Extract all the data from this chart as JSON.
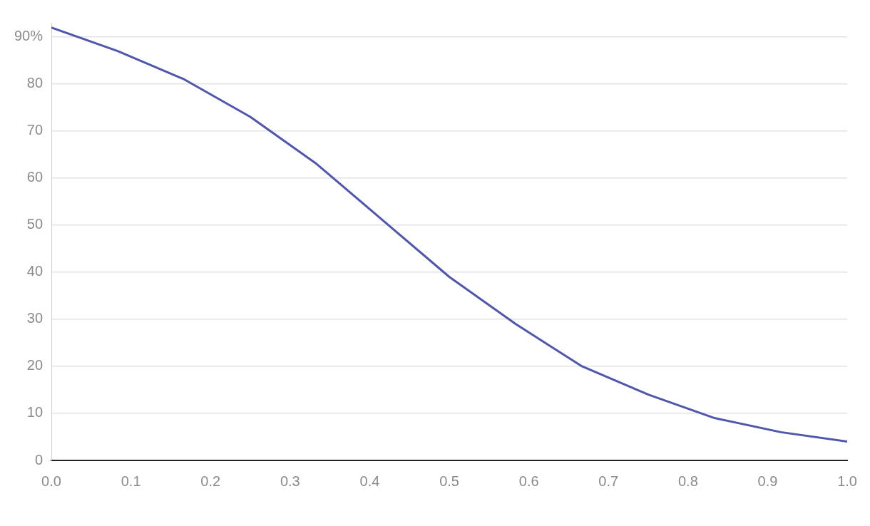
{
  "chart_data": {
    "type": "line",
    "x": [
      0,
      0.0833,
      0.1667,
      0.25,
      0.3333,
      0.4167,
      0.5,
      0.5833,
      0.6667,
      0.75,
      0.8333,
      0.9167,
      1
    ],
    "series": [
      {
        "color": "#4f56ad",
        "values": [
          92,
          87,
          81,
          73,
          63,
          51,
          39,
          29,
          20,
          14,
          9,
          6,
          4
        ]
      }
    ],
    "xlim": [
      0,
      1
    ],
    "xticks": [
      {
        "value": 0,
        "label": "0.0"
      },
      {
        "value": 0.1,
        "label": "0.1"
      },
      {
        "value": 0.2,
        "label": "0.2"
      },
      {
        "value": 0.3,
        "label": "0.3"
      },
      {
        "value": 0.4,
        "label": "0.4"
      },
      {
        "value": 0.5,
        "label": "0.5"
      },
      {
        "value": 0.6,
        "label": "0.6"
      },
      {
        "value": 0.7,
        "label": "0.7"
      },
      {
        "value": 0.8,
        "label": "0.8"
      },
      {
        "value": 0.9,
        "label": "0.9"
      },
      {
        "value": 1,
        "label": "1.0"
      }
    ],
    "ylim": [
      0,
      93
    ],
    "yticks": [
      0,
      10,
      20,
      30,
      40,
      50,
      60,
      70,
      80,
      {
        "value": 90,
        "label": "90%"
      }
    ],
    "grid": "y",
    "legend": false,
    "marker": "none",
    "line_style": "solid"
  }
}
